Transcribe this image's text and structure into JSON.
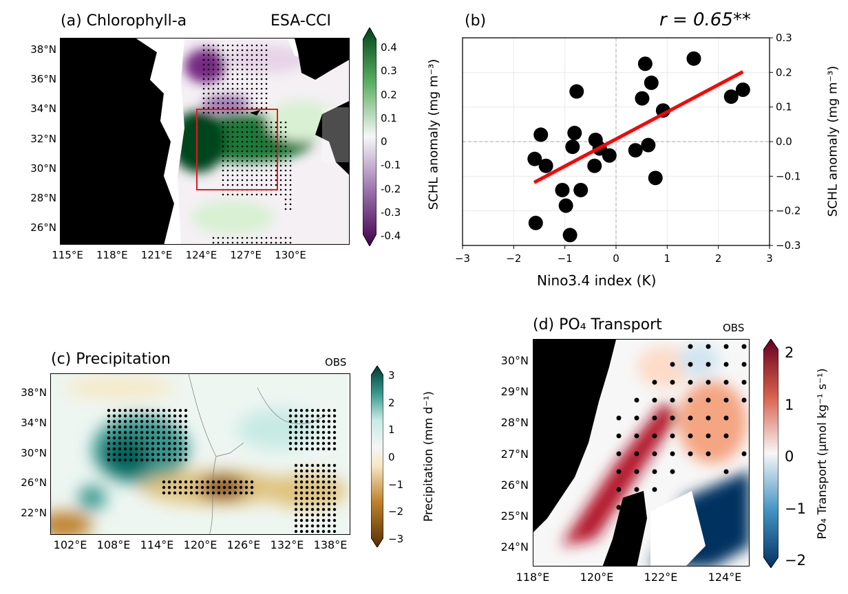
{
  "panel_a": {
    "title": "(a) Chlorophyll-a",
    "source": "ESA-CCI",
    "yticks": [
      "38°N",
      "36°N",
      "34°N",
      "32°N",
      "30°N",
      "28°N",
      "26°N"
    ],
    "xticks": [
      "115°E",
      "118°E",
      "121°E",
      "124°E",
      "127°E",
      "130°E"
    ],
    "colorbar": {
      "label": "SCHL anomaly (mg m⁻³)",
      "ticks": [
        "0.4",
        "0.3",
        "0.2",
        "0.1",
        "0",
        "-0.1",
        "-0.2",
        "-0.3",
        "-0.4"
      ],
      "colors": [
        "#40004b",
        "#9970ab",
        "#f7f7f7",
        "#5aae61",
        "#00441b"
      ]
    },
    "box_color": "#e41a1c"
  },
  "panel_b": {
    "title": "(b)",
    "stat": "r = 0.65**"
  },
  "panel_c": {
    "title": "(c) Precipitation",
    "source": "OBS",
    "yticks": [
      "38°N",
      "34°N",
      "30°N",
      "26°N",
      "22°N"
    ],
    "xticks": [
      "102°E",
      "108°E",
      "114°E",
      "120°E",
      "126°E",
      "132°E",
      "138°E"
    ],
    "colorbar": {
      "label": "Precipitation (mm d⁻¹)",
      "ticks": [
        "3",
        "2",
        "1",
        "0",
        "−1",
        "−2",
        "−3"
      ],
      "colors": [
        "#543005",
        "#bf812d",
        "#f6e8c3",
        "#f5f5f5",
        "#c7eae5",
        "#35978f",
        "#003c30"
      ]
    }
  },
  "panel_d": {
    "title": "(d) PO₄ Transport",
    "source": "OBS",
    "yticks": [
      "30°N",
      "29°N",
      "28°N",
      "27°N",
      "26°N",
      "25°N",
      "24°N"
    ],
    "xticks": [
      "118°E",
      "120°E",
      "122°E",
      "124°E"
    ],
    "colorbar": {
      "label": "PO₄ Transport (μmol kg⁻¹ s⁻¹)",
      "ticks": [
        "2",
        "1",
        "0",
        "−1",
        "−2"
      ],
      "colors": [
        "#053061",
        "#4393c3",
        "#f7f7f7",
        "#d6604d",
        "#67001f"
      ]
    }
  },
  "chart_data": {
    "type": "scatter",
    "title": "(b)",
    "annotation": "r = 0.65**",
    "xlabel": "Nino3.4 index (K)",
    "ylabel": "SCHL anomaly (mg m⁻³)",
    "xlim": [
      -3,
      3
    ],
    "ylim": [
      -0.3,
      0.3
    ],
    "xticks": [
      "−3",
      "−2",
      "−1",
      "0",
      "1",
      "2",
      "3"
    ],
    "yticks": [
      "0.3",
      "0.2",
      "0.1",
      "0.0",
      "−0.1",
      "−0.2",
      "−0.3"
    ],
    "grid": true,
    "points": [
      [
        1.52,
        0.24
      ],
      [
        0.57,
        0.225
      ],
      [
        0.69,
        0.17
      ],
      [
        0.51,
        0.125
      ],
      [
        0.92,
        0.09
      ],
      [
        2.25,
        0.13
      ],
      [
        2.48,
        0.15
      ],
      [
        -0.77,
        0.145
      ],
      [
        -1.47,
        0.02
      ],
      [
        -0.81,
        0.025
      ],
      [
        -0.85,
        -0.015
      ],
      [
        -0.4,
        0.005
      ],
      [
        -0.32,
        -0.02
      ],
      [
        -0.13,
        -0.04
      ],
      [
        -1.59,
        -0.05
      ],
      [
        -1.37,
        -0.07
      ],
      [
        -0.42,
        -0.07
      ],
      [
        0.38,
        -0.025
      ],
      [
        0.63,
        -0.01
      ],
      [
        0.77,
        -0.105
      ],
      [
        -1.05,
        -0.14
      ],
      [
        -0.69,
        -0.14
      ],
      [
        -0.98,
        -0.185
      ],
      [
        -1.57,
        -0.235
      ],
      [
        -0.9,
        -0.27
      ]
    ],
    "fit_line": {
      "x": [
        -1.6,
        2.48
      ],
      "y": [
        -0.118,
        0.202
      ],
      "color": "#ff0000"
    }
  }
}
